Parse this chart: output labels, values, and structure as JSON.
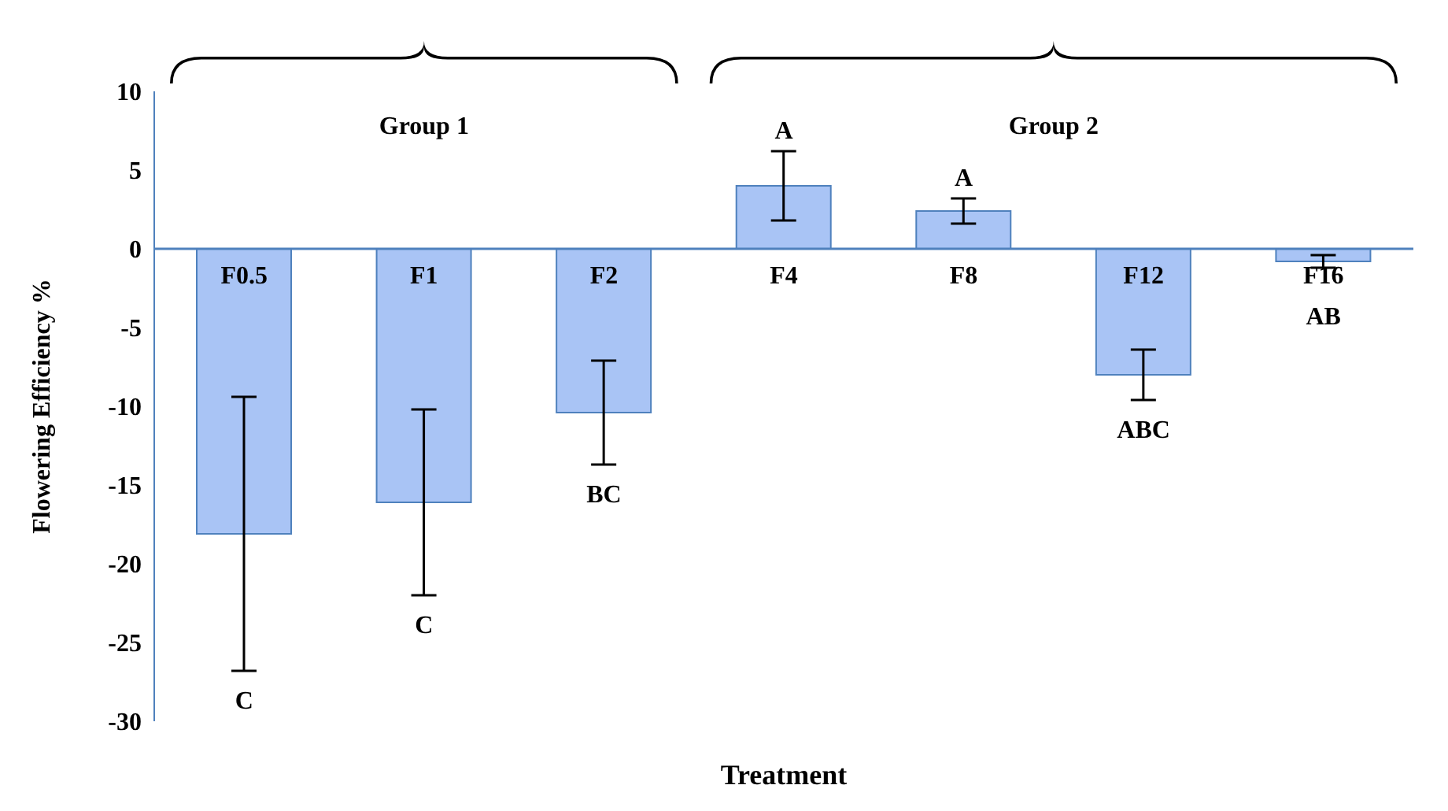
{
  "chart_data": {
    "type": "bar",
    "xlabel": "Treatment",
    "ylabel": "Flowering Efficiency %",
    "categories": [
      "F0.5",
      "F1",
      "F2",
      "F4",
      "F8",
      "F12",
      "F16"
    ],
    "values": [
      -18.1,
      -16.1,
      -10.4,
      4.0,
      2.4,
      -8.0,
      -0.8
    ],
    "errors": [
      8.7,
      5.9,
      3.3,
      2.2,
      0.8,
      1.6,
      0.4
    ],
    "color": "#a9c4f5",
    "ylim": [
      -30,
      10
    ],
    "yticks": [
      -30,
      -25,
      -20,
      -15,
      -10,
      -5,
      0,
      5,
      10
    ],
    "annotations": [
      "Group 1",
      "Group 2",
      "C",
      "C",
      "BC",
      "A",
      "A",
      "ABC",
      "AB"
    ]
  }
}
